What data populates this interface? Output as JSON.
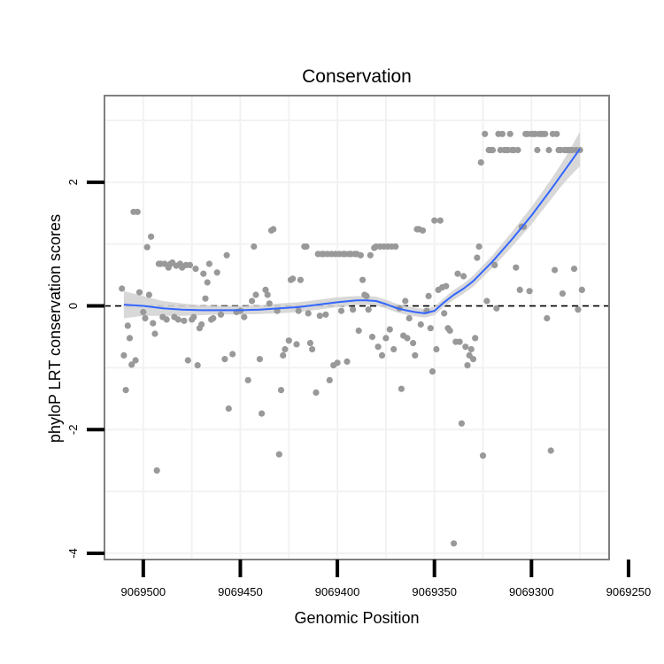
{
  "chart_data": {
    "type": "scatter",
    "title": "Conservation",
    "xlabel": "Genomic Position",
    "ylabel": "phyloP LRT conservation scores",
    "x_reversed": true,
    "xlim": [
      9069260,
      9069520
    ],
    "ylim": [
      -4.1,
      3.4
    ],
    "x_ticks": [
      9069500,
      9069450,
      9069400,
      9069350,
      9069300,
      9069250
    ],
    "x_tick_labels": [
      "9069500",
      "9069450",
      "9069400",
      "9069350",
      "9069300",
      "9069250"
    ],
    "y_ticks": [
      -4,
      -2,
      0,
      2
    ],
    "y_tick_labels": [
      "-4",
      "-2",
      "0",
      "2"
    ],
    "reference_line": {
      "y": 0,
      "style": "dashed"
    },
    "colors": {
      "points": "#999999",
      "smooth_line": "#3366ff",
      "confidence_band": "#d4d4d4",
      "frame": "#7f7f7f",
      "grid": "#f2f2f2",
      "axis_ticks": "#000000"
    },
    "points": [
      {
        "x": 9069511,
        "y": 0.28
      },
      {
        "x": 9069510,
        "y": -0.8
      },
      {
        "x": 9069509,
        "y": -1.36
      },
      {
        "x": 9069508,
        "y": -0.32
      },
      {
        "x": 9069507,
        "y": -0.52
      },
      {
        "x": 9069506,
        "y": -0.95
      },
      {
        "x": 9069505,
        "y": 1.52
      },
      {
        "x": 9069504,
        "y": -0.88
      },
      {
        "x": 9069503,
        "y": 1.52
      },
      {
        "x": 9069502,
        "y": 0.22
      },
      {
        "x": 9069500,
        "y": -0.1
      },
      {
        "x": 9069499,
        "y": -0.2
      },
      {
        "x": 9069498,
        "y": 0.95
      },
      {
        "x": 9069497,
        "y": 0.18
      },
      {
        "x": 9069496,
        "y": 1.12
      },
      {
        "x": 9069495,
        "y": -0.28
      },
      {
        "x": 9069494,
        "y": -0.45
      },
      {
        "x": 9069493,
        "y": -2.66
      },
      {
        "x": 9069492,
        "y": 0.68
      },
      {
        "x": 9069491,
        "y": 0.68
      },
      {
        "x": 9069490,
        "y": -0.18
      },
      {
        "x": 9069489,
        "y": 0.68
      },
      {
        "x": 9069488,
        "y": -0.22
      },
      {
        "x": 9069487,
        "y": 0.62
      },
      {
        "x": 9069486,
        "y": 0.68
      },
      {
        "x": 9069485,
        "y": 0.7
      },
      {
        "x": 9069484,
        "y": -0.18
      },
      {
        "x": 9069483,
        "y": 0.65
      },
      {
        "x": 9069482,
        "y": -0.22
      },
      {
        "x": 9069481,
        "y": 0.68
      },
      {
        "x": 9069480,
        "y": 0.62
      },
      {
        "x": 9069479,
        "y": -0.24
      },
      {
        "x": 9069478,
        "y": 0.66
      },
      {
        "x": 9069477,
        "y": -0.88
      },
      {
        "x": 9069476,
        "y": 0.66
      },
      {
        "x": 9069475,
        "y": -0.22
      },
      {
        "x": 9069474,
        "y": -0.18
      },
      {
        "x": 9069473,
        "y": 0.6
      },
      {
        "x": 9069472,
        "y": -0.96
      },
      {
        "x": 9069471,
        "y": -0.36
      },
      {
        "x": 9069470,
        "y": -0.3
      },
      {
        "x": 9069469,
        "y": 0.52
      },
      {
        "x": 9069468,
        "y": 0.12
      },
      {
        "x": 9069467,
        "y": 0.38
      },
      {
        "x": 9069466,
        "y": 0.68
      },
      {
        "x": 9069465,
        "y": -0.22
      },
      {
        "x": 9069464,
        "y": -0.2
      },
      {
        "x": 9069462,
        "y": 0.54
      },
      {
        "x": 9069460,
        "y": -0.14
      },
      {
        "x": 9069458,
        "y": -0.86
      },
      {
        "x": 9069457,
        "y": 0.82
      },
      {
        "x": 9069456,
        "y": -1.66
      },
      {
        "x": 9069454,
        "y": -0.78
      },
      {
        "x": 9069452,
        "y": -0.1
      },
      {
        "x": 9069450,
        "y": -0.08
      },
      {
        "x": 9069448,
        "y": -0.18
      },
      {
        "x": 9069446,
        "y": -1.2
      },
      {
        "x": 9069444,
        "y": 0.08
      },
      {
        "x": 9069443,
        "y": 0.96
      },
      {
        "x": 9069442,
        "y": 0.18
      },
      {
        "x": 9069440,
        "y": -0.86
      },
      {
        "x": 9069439,
        "y": -1.74
      },
      {
        "x": 9069437,
        "y": 0.26
      },
      {
        "x": 9069436,
        "y": 0.18
      },
      {
        "x": 9069435,
        "y": 0.04
      },
      {
        "x": 9069434,
        "y": 1.22
      },
      {
        "x": 9069433,
        "y": 1.24
      },
      {
        "x": 9069431,
        "y": -0.08
      },
      {
        "x": 9069430,
        "y": -2.4
      },
      {
        "x": 9069429,
        "y": -1.36
      },
      {
        "x": 9069428,
        "y": -0.8
      },
      {
        "x": 9069427,
        "y": -0.7
      },
      {
        "x": 9069425,
        "y": -0.56
      },
      {
        "x": 9069424,
        "y": 0.42
      },
      {
        "x": 9069423,
        "y": 0.44
      },
      {
        "x": 9069421,
        "y": -0.62
      },
      {
        "x": 9069420,
        "y": -0.08
      },
      {
        "x": 9069419,
        "y": 0.42
      },
      {
        "x": 9069417,
        "y": 0.96
      },
      {
        "x": 9069416,
        "y": 0.96
      },
      {
        "x": 9069415,
        "y": -0.12
      },
      {
        "x": 9069414,
        "y": -0.6
      },
      {
        "x": 9069413,
        "y": -0.7
      },
      {
        "x": 9069411,
        "y": -1.4
      },
      {
        "x": 9069410,
        "y": 0.84
      },
      {
        "x": 9069409,
        "y": -0.16
      },
      {
        "x": 9069408,
        "y": 0.84
      },
      {
        "x": 9069407,
        "y": 0.84
      },
      {
        "x": 9069406,
        "y": -0.14
      },
      {
        "x": 9069405,
        "y": 0.84
      },
      {
        "x": 9069404,
        "y": -1.2
      },
      {
        "x": 9069403,
        "y": 0.84
      },
      {
        "x": 9069402,
        "y": -0.96
      },
      {
        "x": 9069401,
        "y": 0.84
      },
      {
        "x": 9069400,
        "y": -0.92
      },
      {
        "x": 9069399,
        "y": 0.84
      },
      {
        "x": 9069398,
        "y": -0.08
      },
      {
        "x": 9069397,
        "y": 0.84
      },
      {
        "x": 9069396,
        "y": 0.84
      },
      {
        "x": 9069395,
        "y": -0.9
      },
      {
        "x": 9069394,
        "y": 0.84
      },
      {
        "x": 9069393,
        "y": 0.84
      },
      {
        "x": 9069392,
        "y": -0.06
      },
      {
        "x": 9069391,
        "y": 0.84
      },
      {
        "x": 9069390,
        "y": 0.84
      },
      {
        "x": 9069389,
        "y": -0.4
      },
      {
        "x": 9069388,
        "y": 0.82
      },
      {
        "x": 9069387,
        "y": 0.42
      },
      {
        "x": 9069386,
        "y": 0.18
      },
      {
        "x": 9069385,
        "y": 0.16
      },
      {
        "x": 9069384,
        "y": -0.06
      },
      {
        "x": 9069383,
        "y": 0.82
      },
      {
        "x": 9069382,
        "y": -0.5
      },
      {
        "x": 9069381,
        "y": 0.94
      },
      {
        "x": 9069380,
        "y": 0.96
      },
      {
        "x": 9069379,
        "y": -0.66
      },
      {
        "x": 9069378,
        "y": 0.96
      },
      {
        "x": 9069377,
        "y": -0.8
      },
      {
        "x": 9069376,
        "y": 0.96
      },
      {
        "x": 9069375,
        "y": -0.52
      },
      {
        "x": 9069374,
        "y": 0.96
      },
      {
        "x": 9069373,
        "y": -0.38
      },
      {
        "x": 9069372,
        "y": 0.96
      },
      {
        "x": 9069371,
        "y": -0.7
      },
      {
        "x": 9069370,
        "y": 0.96
      },
      {
        "x": 9069368,
        "y": -0.04
      },
      {
        "x": 9069367,
        "y": -1.34
      },
      {
        "x": 9069366,
        "y": -0.48
      },
      {
        "x": 9069365,
        "y": 0.08
      },
      {
        "x": 9069364,
        "y": -0.52
      },
      {
        "x": 9069363,
        "y": -0.2
      },
      {
        "x": 9069361,
        "y": -0.6
      },
      {
        "x": 9069360,
        "y": -0.8
      },
      {
        "x": 9069359,
        "y": 1.24
      },
      {
        "x": 9069358,
        "y": 1.24
      },
      {
        "x": 9069357,
        "y": -0.3
      },
      {
        "x": 9069356,
        "y": 1.22
      },
      {
        "x": 9069354,
        "y": -0.08
      },
      {
        "x": 9069353,
        "y": 0.16
      },
      {
        "x": 9069352,
        "y": -0.36
      },
      {
        "x": 9069351,
        "y": -1.06
      },
      {
        "x": 9069350,
        "y": 1.38
      },
      {
        "x": 9069349,
        "y": -0.7
      },
      {
        "x": 9069348,
        "y": 0.26
      },
      {
        "x": 9069347,
        "y": 1.38
      },
      {
        "x": 9069346,
        "y": 0.3
      },
      {
        "x": 9069345,
        "y": -0.12
      },
      {
        "x": 9069344,
        "y": 0.32
      },
      {
        "x": 9069343,
        "y": -0.36
      },
      {
        "x": 9069342,
        "y": -0.4
      },
      {
        "x": 9069340,
        "y": -3.84
      },
      {
        "x": 9069339,
        "y": -0.58
      },
      {
        "x": 9069338,
        "y": 0.52
      },
      {
        "x": 9069337,
        "y": -0.58
      },
      {
        "x": 9069336,
        "y": -1.9
      },
      {
        "x": 9069335,
        "y": 0.48
      },
      {
        "x": 9069334,
        "y": -0.66
      },
      {
        "x": 9069333,
        "y": -0.96
      },
      {
        "x": 9069332,
        "y": -0.8
      },
      {
        "x": 9069331,
        "y": -0.7
      },
      {
        "x": 9069330,
        "y": -0.86
      },
      {
        "x": 9069329,
        "y": -0.52
      },
      {
        "x": 9069328,
        "y": 0.78
      },
      {
        "x": 9069327,
        "y": 0.96
      },
      {
        "x": 9069326,
        "y": 2.32
      },
      {
        "x": 9069325,
        "y": -2.42
      },
      {
        "x": 9069324,
        "y": 2.78
      },
      {
        "x": 9069323,
        "y": 0.08
      },
      {
        "x": 9069322,
        "y": 2.52
      },
      {
        "x": 9069321,
        "y": 2.52
      },
      {
        "x": 9069320,
        "y": 2.52
      },
      {
        "x": 9069319,
        "y": 0.66
      },
      {
        "x": 9069318,
        "y": -0.04
      },
      {
        "x": 9069317,
        "y": 2.78
      },
      {
        "x": 9069316,
        "y": 2.52
      },
      {
        "x": 9069315,
        "y": 2.78
      },
      {
        "x": 9069314,
        "y": 2.52
      },
      {
        "x": 9069313,
        "y": 2.52
      },
      {
        "x": 9069312,
        "y": 2.52
      },
      {
        "x": 9069311,
        "y": 2.78
      },
      {
        "x": 9069310,
        "y": 2.52
      },
      {
        "x": 9069309,
        "y": 2.52
      },
      {
        "x": 9069308,
        "y": 0.62
      },
      {
        "x": 9069307,
        "y": 2.52
      },
      {
        "x": 9069306,
        "y": 0.26
      },
      {
        "x": 9069305,
        "y": 1.28
      },
      {
        "x": 9069304,
        "y": 1.28
      },
      {
        "x": 9069303,
        "y": 2.78
      },
      {
        "x": 9069302,
        "y": 2.78
      },
      {
        "x": 9069301,
        "y": 0.24
      },
      {
        "x": 9069300,
        "y": 2.78
      },
      {
        "x": 9069299,
        "y": 2.78
      },
      {
        "x": 9069298,
        "y": 2.78
      },
      {
        "x": 9069297,
        "y": 2.52
      },
      {
        "x": 9069296,
        "y": 2.78
      },
      {
        "x": 9069295,
        "y": 2.78
      },
      {
        "x": 9069294,
        "y": 2.78
      },
      {
        "x": 9069293,
        "y": 2.78
      },
      {
        "x": 9069292,
        "y": -0.2
      },
      {
        "x": 9069291,
        "y": 2.52
      },
      {
        "x": 9069290,
        "y": -2.34
      },
      {
        "x": 9069289,
        "y": 2.78
      },
      {
        "x": 9069288,
        "y": 0.58
      },
      {
        "x": 9069287,
        "y": 2.78
      },
      {
        "x": 9069286,
        "y": 2.52
      },
      {
        "x": 9069285,
        "y": 2.52
      },
      {
        "x": 9069284,
        "y": 0.2
      },
      {
        "x": 9069283,
        "y": 2.52
      },
      {
        "x": 9069282,
        "y": 2.52
      },
      {
        "x": 9069281,
        "y": 2.52
      },
      {
        "x": 9069280,
        "y": 2.52
      },
      {
        "x": 9069279,
        "y": 2.52
      },
      {
        "x": 9069278,
        "y": 0.6
      },
      {
        "x": 9069277,
        "y": 2.52
      },
      {
        "x": 9069276,
        "y": -0.06
      },
      {
        "x": 9069275,
        "y": 2.52
      },
      {
        "x": 9069274,
        "y": 0.26
      }
    ],
    "smooth": {
      "x": [
        9069510,
        9069500,
        9069490,
        9069480,
        9069470,
        9069460,
        9069450,
        9069440,
        9069430,
        9069420,
        9069410,
        9069400,
        9069390,
        9069385,
        9069380,
        9069375,
        9069370,
        9069365,
        9069360,
        9069355,
        9069350,
        9069345,
        9069340,
        9069335,
        9069330,
        9069320,
        9069310,
        9069300,
        9069290,
        9069285,
        9069280,
        9069275
      ],
      "y": [
        0.02,
        0.0,
        -0.04,
        -0.06,
        -0.07,
        -0.07,
        -0.07,
        -0.06,
        -0.04,
        -0.02,
        0.02,
        0.06,
        0.09,
        0.09,
        0.08,
        0.03,
        -0.03,
        -0.07,
        -0.1,
        -0.12,
        -0.08,
        0.06,
        0.18,
        0.28,
        0.4,
        0.72,
        1.08,
        1.46,
        1.88,
        2.1,
        2.32,
        2.54
      ],
      "se": [
        0.22,
        0.16,
        0.12,
        0.1,
        0.08,
        0.07,
        0.07,
        0.07,
        0.08,
        0.08,
        0.08,
        0.08,
        0.07,
        0.07,
        0.07,
        0.07,
        0.07,
        0.07,
        0.07,
        0.07,
        0.07,
        0.07,
        0.08,
        0.08,
        0.09,
        0.1,
        0.12,
        0.14,
        0.16,
        0.18,
        0.22,
        0.28
      ]
    }
  }
}
